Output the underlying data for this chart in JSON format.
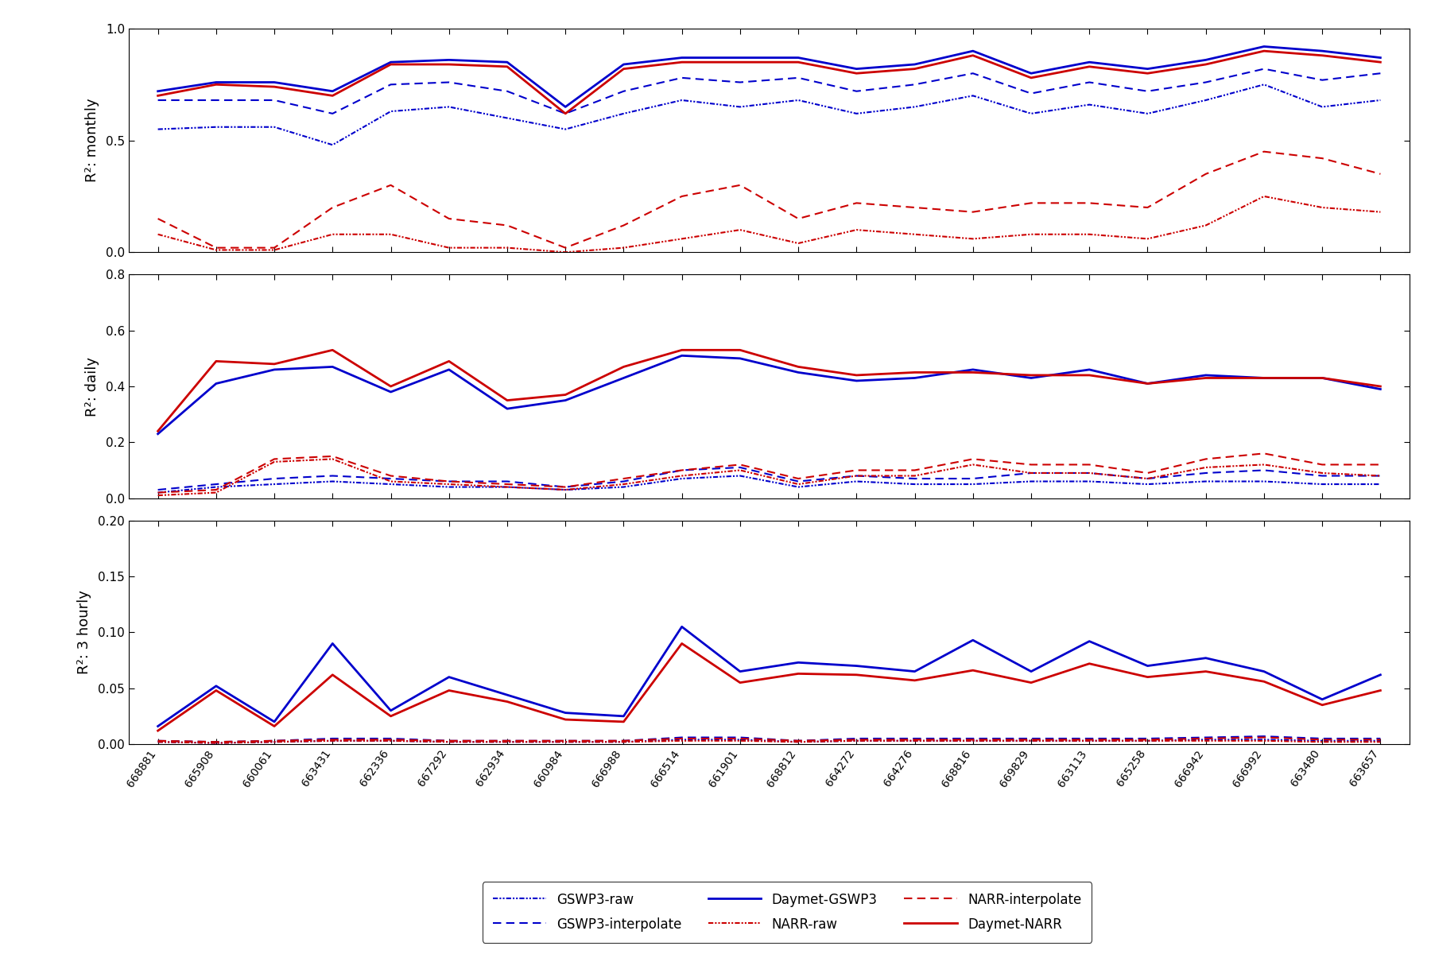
{
  "x_labels": [
    "668881",
    "665908",
    "660061",
    "663431",
    "662336",
    "667292",
    "662934",
    "660984",
    "666988",
    "666514",
    "661901",
    "668812",
    "664272",
    "664276",
    "668816",
    "669829",
    "663113",
    "665258",
    "666942",
    "666992",
    "663480",
    "663657"
  ],
  "monthly": {
    "GSWP3_raw": [
      0.55,
      0.56,
      0.56,
      0.48,
      0.63,
      0.65,
      0.6,
      0.55,
      0.62,
      0.68,
      0.65,
      0.68,
      0.62,
      0.65,
      0.7,
      0.62,
      0.66,
      0.62,
      0.68,
      0.75,
      0.65,
      0.68
    ],
    "GSWP3_interp": [
      0.68,
      0.68,
      0.68,
      0.62,
      0.75,
      0.76,
      0.72,
      0.62,
      0.72,
      0.78,
      0.76,
      0.78,
      0.72,
      0.75,
      0.8,
      0.71,
      0.76,
      0.72,
      0.76,
      0.82,
      0.77,
      0.8
    ],
    "Daymet_GSWP3": [
      0.72,
      0.76,
      0.76,
      0.72,
      0.85,
      0.86,
      0.85,
      0.65,
      0.84,
      0.87,
      0.87,
      0.87,
      0.82,
      0.84,
      0.9,
      0.8,
      0.85,
      0.82,
      0.86,
      0.92,
      0.9,
      0.87
    ],
    "NARR_raw": [
      0.08,
      0.01,
      0.01,
      0.08,
      0.08,
      0.02,
      0.02,
      0.0,
      0.02,
      0.06,
      0.1,
      0.04,
      0.1,
      0.08,
      0.06,
      0.08,
      0.08,
      0.06,
      0.12,
      0.25,
      0.2,
      0.18
    ],
    "NARR_interp": [
      0.15,
      0.02,
      0.02,
      0.2,
      0.3,
      0.15,
      0.12,
      0.02,
      0.12,
      0.25,
      0.3,
      0.15,
      0.22,
      0.2,
      0.18,
      0.22,
      0.22,
      0.2,
      0.35,
      0.45,
      0.42,
      0.35
    ],
    "Daymet_NARR": [
      0.7,
      0.75,
      0.74,
      0.7,
      0.84,
      0.84,
      0.83,
      0.62,
      0.82,
      0.85,
      0.85,
      0.85,
      0.8,
      0.82,
      0.88,
      0.78,
      0.83,
      0.8,
      0.84,
      0.9,
      0.88,
      0.85
    ],
    "ylim": [
      0,
      1
    ],
    "yticks": [
      0,
      0.5,
      1.0
    ],
    "ylabel": "R²: monthly"
  },
  "daily": {
    "GSWP3_raw": [
      0.02,
      0.04,
      0.05,
      0.06,
      0.05,
      0.04,
      0.04,
      0.03,
      0.04,
      0.07,
      0.08,
      0.04,
      0.06,
      0.05,
      0.05,
      0.06,
      0.06,
      0.05,
      0.06,
      0.06,
      0.05,
      0.05
    ],
    "GSWP3_interp": [
      0.03,
      0.05,
      0.07,
      0.08,
      0.07,
      0.06,
      0.06,
      0.04,
      0.06,
      0.1,
      0.11,
      0.06,
      0.08,
      0.07,
      0.07,
      0.09,
      0.09,
      0.07,
      0.09,
      0.1,
      0.08,
      0.08
    ],
    "Daymet_GSWP3": [
      0.23,
      0.41,
      0.46,
      0.47,
      0.38,
      0.46,
      0.32,
      0.35,
      0.43,
      0.51,
      0.5,
      0.45,
      0.42,
      0.43,
      0.46,
      0.43,
      0.46,
      0.41,
      0.44,
      0.43,
      0.43,
      0.39
    ],
    "NARR_raw": [
      0.01,
      0.02,
      0.13,
      0.14,
      0.06,
      0.05,
      0.04,
      0.03,
      0.05,
      0.08,
      0.1,
      0.05,
      0.08,
      0.08,
      0.12,
      0.09,
      0.09,
      0.07,
      0.11,
      0.12,
      0.09,
      0.08
    ],
    "NARR_interp": [
      0.02,
      0.03,
      0.14,
      0.15,
      0.08,
      0.06,
      0.05,
      0.04,
      0.07,
      0.1,
      0.12,
      0.07,
      0.1,
      0.1,
      0.14,
      0.12,
      0.12,
      0.09,
      0.14,
      0.16,
      0.12,
      0.12
    ],
    "Daymet_NARR": [
      0.24,
      0.49,
      0.48,
      0.53,
      0.4,
      0.49,
      0.35,
      0.37,
      0.47,
      0.53,
      0.53,
      0.47,
      0.44,
      0.45,
      0.45,
      0.44,
      0.44,
      0.41,
      0.43,
      0.43,
      0.43,
      0.4
    ],
    "ylim": [
      0,
      0.8
    ],
    "yticks": [
      0,
      0.2,
      0.4,
      0.6,
      0.8
    ],
    "ylabel": "R²: daily"
  },
  "hourly3": {
    "GSWP3_raw": [
      0.002,
      0.001,
      0.002,
      0.003,
      0.003,
      0.002,
      0.002,
      0.002,
      0.002,
      0.004,
      0.004,
      0.002,
      0.003,
      0.003,
      0.003,
      0.003,
      0.003,
      0.003,
      0.004,
      0.004,
      0.003,
      0.003
    ],
    "GSWP3_interp": [
      0.003,
      0.002,
      0.003,
      0.005,
      0.005,
      0.003,
      0.003,
      0.003,
      0.003,
      0.006,
      0.006,
      0.003,
      0.005,
      0.005,
      0.005,
      0.005,
      0.005,
      0.005,
      0.006,
      0.007,
      0.005,
      0.005
    ],
    "Daymet_GSWP3": [
      0.016,
      0.052,
      0.02,
      0.09,
      0.03,
      0.06,
      0.044,
      0.028,
      0.025,
      0.105,
      0.065,
      0.073,
      0.07,
      0.065,
      0.093,
      0.065,
      0.092,
      0.07,
      0.077,
      0.065,
      0.04,
      0.062
    ],
    "NARR_raw": [
      0.002,
      0.001,
      0.002,
      0.003,
      0.003,
      0.002,
      0.002,
      0.002,
      0.002,
      0.003,
      0.003,
      0.002,
      0.003,
      0.003,
      0.003,
      0.003,
      0.003,
      0.003,
      0.003,
      0.003,
      0.002,
      0.002
    ],
    "NARR_interp": [
      0.003,
      0.002,
      0.003,
      0.004,
      0.004,
      0.003,
      0.003,
      0.003,
      0.003,
      0.005,
      0.005,
      0.003,
      0.004,
      0.004,
      0.004,
      0.004,
      0.004,
      0.004,
      0.005,
      0.006,
      0.004,
      0.004
    ],
    "Daymet_NARR": [
      0.012,
      0.048,
      0.016,
      0.062,
      0.025,
      0.048,
      0.038,
      0.022,
      0.02,
      0.09,
      0.055,
      0.063,
      0.062,
      0.057,
      0.066,
      0.055,
      0.072,
      0.06,
      0.065,
      0.056,
      0.035,
      0.048
    ],
    "ylim": [
      0,
      0.2
    ],
    "yticks": [
      0,
      0.05,
      0.1,
      0.15,
      0.2
    ],
    "ylabel": "R²: 3 hourly"
  },
  "blue_color": "#0000cc",
  "red_color": "#cc0000",
  "lw_solid": 2.0,
  "lw_dashed": 1.5,
  "lw_dotted": 1.5
}
